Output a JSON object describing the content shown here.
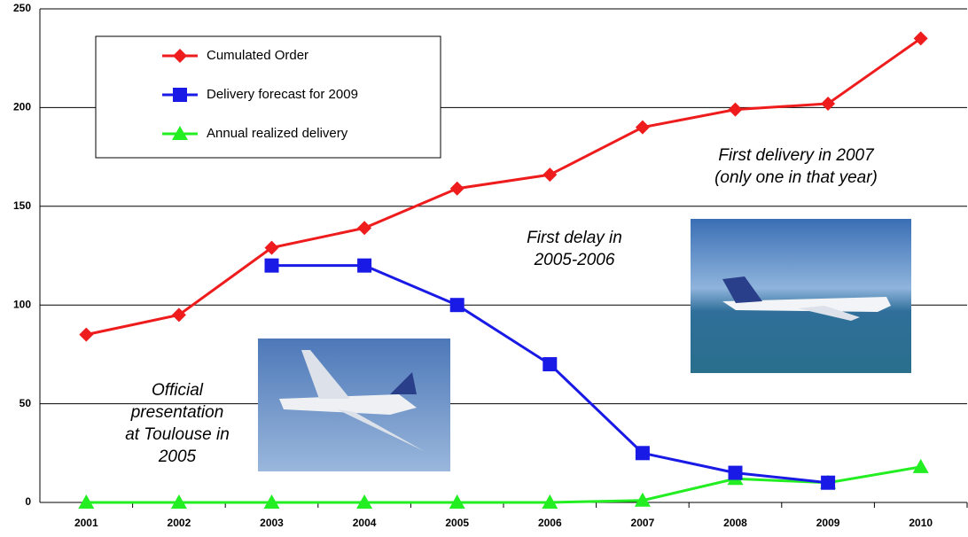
{
  "chart_data": {
    "type": "line",
    "categories": [
      "2001",
      "2002",
      "2003",
      "2004",
      "2005",
      "2006",
      "2007",
      "2008",
      "2009",
      "2010"
    ],
    "series": [
      {
        "name": "Cumulated Order",
        "color": "#ee1c1c",
        "marker": "diamond",
        "values": [
          85,
          95,
          129,
          139,
          159,
          166,
          190,
          199,
          202,
          235
        ]
      },
      {
        "name": "Delivery forecast for 2009",
        "color": "#1a1ae6",
        "marker": "square",
        "values": [
          null,
          null,
          120,
          120,
          100,
          70,
          25,
          15,
          10,
          null
        ]
      },
      {
        "name": "Annual realized delivery",
        "color": "#22ee22",
        "marker": "triangle",
        "values": [
          0,
          0,
          0,
          0,
          0,
          0,
          1,
          12,
          10,
          18
        ]
      }
    ],
    "ylim": [
      0,
      250
    ],
    "yticks": [
      0,
      50,
      100,
      150,
      200,
      250
    ],
    "grid": true,
    "legend": "upper left",
    "annotations": [
      [
        "Official",
        "presentation",
        "at Toulouse in",
        "2005"
      ],
      [
        "First delay in",
        "2005-2006"
      ],
      [
        "First delivery in 2007",
        "(only one in that year)"
      ]
    ]
  }
}
